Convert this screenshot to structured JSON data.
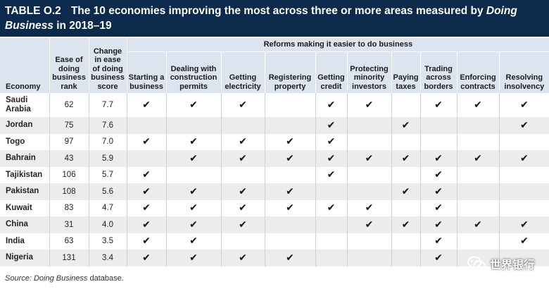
{
  "title": {
    "label": "TABLE O.2",
    "text_pre": "The 10 economies improving the most across three or more areas measured by ",
    "text_em": "Doing Business",
    "text_post": " in 2018–19"
  },
  "table": {
    "header": {
      "economy": "Economy",
      "rank": "Ease of doing business rank",
      "change": "Change in ease of doing business score",
      "reforms_group": "Reforms making it easier to do business",
      "reform_areas": [
        "Starting a business",
        "Dealing with construction permits",
        "Getting electricity",
        "Registering property",
        "Getting credit",
        "Protecting minority investors",
        "Paying taxes",
        "Trading across borders",
        "Enforcing contracts",
        "Resolving insolvency"
      ]
    },
    "check_glyph": "✔",
    "rows": [
      {
        "economy": "Saudi Arabia",
        "rank": "62",
        "change": "7.7",
        "reforms": [
          true,
          true,
          true,
          false,
          true,
          true,
          false,
          true,
          true,
          true
        ]
      },
      {
        "economy": "Jordan",
        "rank": "75",
        "change": "7.6",
        "reforms": [
          false,
          false,
          false,
          false,
          true,
          false,
          true,
          false,
          false,
          true
        ]
      },
      {
        "economy": "Togo",
        "rank": "97",
        "change": "7.0",
        "reforms": [
          true,
          true,
          true,
          true,
          true,
          false,
          false,
          false,
          false,
          false
        ]
      },
      {
        "economy": "Bahrain",
        "rank": "43",
        "change": "5.9",
        "reforms": [
          false,
          true,
          true,
          true,
          true,
          true,
          true,
          true,
          true,
          true
        ]
      },
      {
        "economy": "Tajikistan",
        "rank": "106",
        "change": "5.7",
        "reforms": [
          true,
          false,
          false,
          false,
          true,
          false,
          false,
          true,
          false,
          false
        ]
      },
      {
        "economy": "Pakistan",
        "rank": "108",
        "change": "5.6",
        "reforms": [
          true,
          true,
          true,
          true,
          false,
          false,
          true,
          true,
          false,
          false
        ]
      },
      {
        "economy": "Kuwait",
        "rank": "83",
        "change": "4.7",
        "reforms": [
          true,
          true,
          true,
          true,
          true,
          true,
          false,
          true,
          false,
          false
        ]
      },
      {
        "economy": "China",
        "rank": "31",
        "change": "4.0",
        "reforms": [
          true,
          true,
          true,
          false,
          false,
          true,
          true,
          true,
          true,
          true
        ]
      },
      {
        "economy": "India",
        "rank": "63",
        "change": "3.5",
        "reforms": [
          true,
          true,
          false,
          false,
          false,
          false,
          false,
          true,
          false,
          true
        ]
      },
      {
        "economy": "Nigeria",
        "rank": "131",
        "change": "3.4",
        "reforms": [
          true,
          true,
          true,
          true,
          false,
          false,
          false,
          true,
          false,
          false
        ]
      }
    ]
  },
  "source": {
    "prefix": "Source: ",
    "em": "Doing Business",
    "suffix": " database."
  },
  "watermark": {
    "text": "世界银行",
    "icon": "wechat-icon"
  }
}
